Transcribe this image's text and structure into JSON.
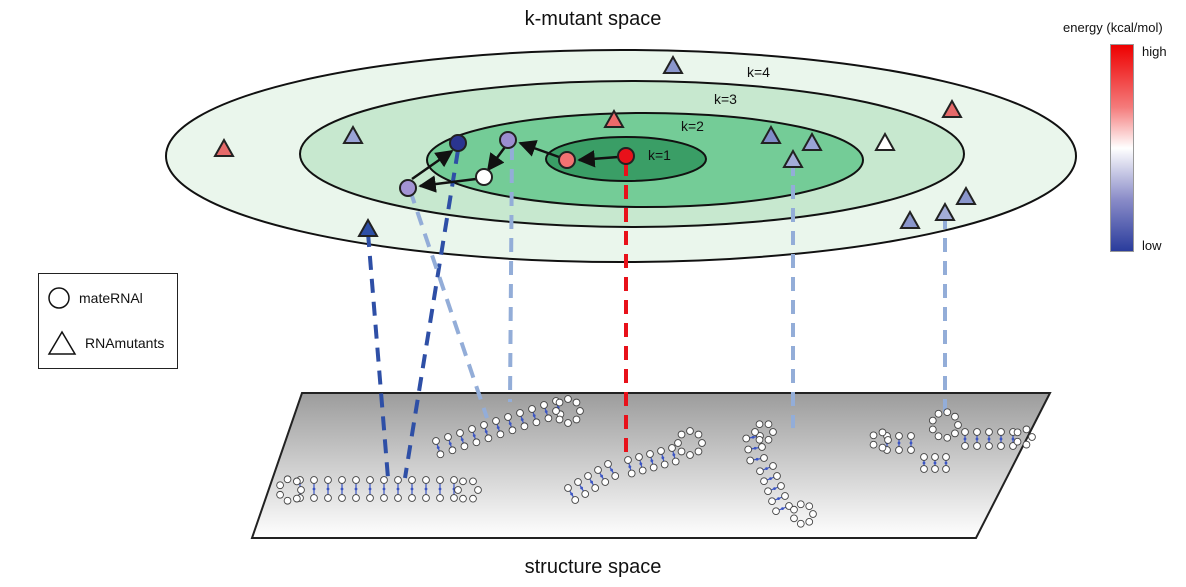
{
  "titles": {
    "top": "k-mutant space",
    "bottom": "structure space"
  },
  "legend": {
    "circle_label": "mateRNAl",
    "triangle_label": "RNAmutants"
  },
  "colorbar": {
    "title": "energy (kcal/mol)",
    "high": "high",
    "low": "low"
  },
  "rings": [
    {
      "label": "k=1",
      "fill": "#3a9e66"
    },
    {
      "label": "k=2",
      "fill": "#74cc97"
    },
    {
      "label": "k=3",
      "fill": "#c7e8cf"
    },
    {
      "label": "k=4",
      "fill": "#eaf6ec"
    }
  ],
  "colors": {
    "high": "#ee0000",
    "low": "#2a3c9c",
    "dark_blue_line": "#2e4fa6",
    "light_blue_line": "#93add8",
    "red_line": "#e8111a",
    "pair_bond": "#3b55c4"
  }
}
